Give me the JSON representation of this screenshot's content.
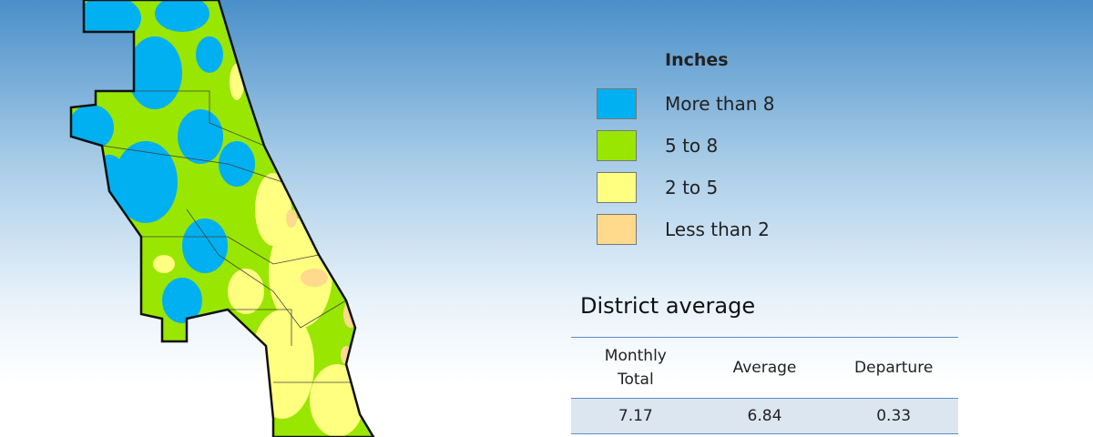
{
  "legend": {
    "title": "Inches",
    "items": [
      {
        "label": "More than 8",
        "color": "#00b0f0"
      },
      {
        "label": "5 to 8",
        "color": "#99e600"
      },
      {
        "label": "2 to 5",
        "color": "#ffff80"
      },
      {
        "label": "Less than 2",
        "color": "#ffd98c"
      }
    ]
  },
  "table": {
    "title": "District average",
    "headers": [
      "Monthly Total",
      "Average",
      "Departure"
    ],
    "rows": [
      [
        7.17,
        6.84,
        0.33
      ]
    ]
  }
}
